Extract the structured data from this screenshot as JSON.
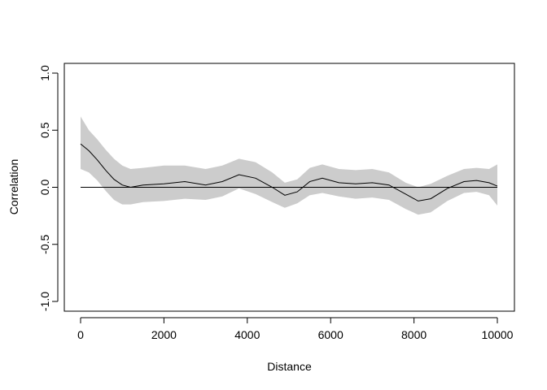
{
  "chart_data": {
    "type": "line",
    "title": "",
    "xlabel": "Distance",
    "ylabel": "Correlation",
    "xlim": [
      0,
      10000
    ],
    "ylim": [
      -1.0,
      1.0
    ],
    "grid": false,
    "legend": "none",
    "x_ticks": [
      0,
      2000,
      4000,
      6000,
      8000,
      10000
    ],
    "x_tick_labels": [
      "0",
      "2000",
      "4000",
      "6000",
      "8000",
      "10000"
    ],
    "y_ticks": [
      -1.0,
      -0.5,
      0.0,
      0.5,
      1.0
    ],
    "y_tick_labels": [
      "-1.0",
      "-0.5",
      "0.0",
      "0.5",
      "1.0"
    ],
    "reference_line_y": 0,
    "colors": {
      "line": "#000000",
      "band": "#cccccc",
      "axis": "#000000"
    },
    "series": [
      {
        "x": [
          0,
          200,
          400,
          600,
          800,
          1000,
          1200,
          1500,
          2000,
          2500,
          3000,
          3400,
          3800,
          4200,
          4600,
          4900,
          5200,
          5500,
          5800,
          6200,
          6600,
          7000,
          7400,
          7800,
          8100,
          8400,
          8800,
          9200,
          9500,
          9800,
          10000
        ],
        "y": [
          0.38,
          0.32,
          0.24,
          0.15,
          0.07,
          0.02,
          0.0,
          0.02,
          0.03,
          0.05,
          0.02,
          0.05,
          0.11,
          0.08,
          0.0,
          -0.07,
          -0.04,
          0.05,
          0.08,
          0.04,
          0.03,
          0.04,
          0.02,
          -0.06,
          -0.12,
          -0.1,
          -0.01,
          0.05,
          0.06,
          0.04,
          0.01
        ],
        "lower": [
          0.16,
          0.13,
          0.06,
          -0.03,
          -0.11,
          -0.15,
          -0.15,
          -0.13,
          -0.12,
          -0.1,
          -0.11,
          -0.08,
          -0.01,
          -0.06,
          -0.13,
          -0.18,
          -0.14,
          -0.07,
          -0.05,
          -0.08,
          -0.1,
          -0.09,
          -0.11,
          -0.19,
          -0.24,
          -0.22,
          -0.12,
          -0.05,
          -0.04,
          -0.07,
          -0.16
        ],
        "upper": [
          0.62,
          0.5,
          0.42,
          0.33,
          0.25,
          0.19,
          0.16,
          0.17,
          0.19,
          0.19,
          0.16,
          0.19,
          0.25,
          0.22,
          0.13,
          0.04,
          0.07,
          0.17,
          0.2,
          0.16,
          0.15,
          0.16,
          0.13,
          0.04,
          0.0,
          0.03,
          0.1,
          0.16,
          0.17,
          0.16,
          0.2
        ]
      }
    ]
  }
}
